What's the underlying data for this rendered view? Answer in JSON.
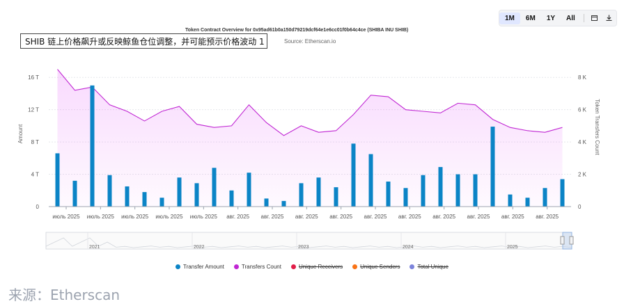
{
  "toolbar": {
    "ranges": [
      "1M",
      "6M",
      "1Y",
      "All"
    ],
    "active_range": "1M",
    "icons": [
      "calendar-icon",
      "download-icon"
    ]
  },
  "caption": "SHIB 链上价格飙升或反映鲸鱼仓位调整，并可能预示价格波动 1",
  "source_note": "来源：Etherscan",
  "chart_data": {
    "type": "bar",
    "title": "Token Contract Overview for 0x95ad61b0a150d79219dcf64e1e6cc01f0b64c4ce (SHIBA INU SHIB)",
    "subtitle": "Source: Etherscan.io",
    "y_left_label": "Amount",
    "y_right_label": "Token Transfers Count",
    "y_left_ticks": [
      "0",
      "4 T",
      "8 T",
      "12 T",
      "16 T"
    ],
    "y_right_ticks": [
      "0",
      "2 K",
      "4 K",
      "6 K",
      "8 K"
    ],
    "y_left_lim": [
      0,
      18
    ],
    "y_right_lim": [
      0,
      9000
    ],
    "x_tick_labels": [
      "июль 2025",
      "июль 2025",
      "июль 2025",
      "июль 2025",
      "июль 2025",
      "авг. 2025",
      "авг. 2025",
      "авг. 2025",
      "авг. 2025",
      "авг. 2025",
      "авг. 2025",
      "авг. 2025",
      "авг. 2025",
      "авг. 2025",
      "авг. 2025"
    ],
    "series": [
      {
        "name": "Transfer Amount",
        "type": "bar",
        "color": "#0b84c6",
        "values": [
          6.6,
          3.2,
          15.0,
          3.9,
          2.5,
          1.8,
          1.1,
          3.6,
          2.9,
          4.8,
          2.0,
          4.2,
          1.0,
          0.7,
          2.9,
          3.6,
          2.4,
          7.8,
          6.5,
          3.1,
          2.3,
          3.9,
          4.9,
          4.0,
          4.0,
          9.9,
          1.5,
          1.1,
          2.3,
          3.4
        ]
      },
      {
        "name": "Transfers Count",
        "type": "area",
        "color": "#c026d3",
        "values": [
          8500,
          7200,
          7400,
          6300,
          5900,
          5300,
          5900,
          6200,
          5100,
          4900,
          5000,
          6300,
          5200,
          4400,
          5000,
          4600,
          4700,
          5700,
          6900,
          6800,
          6000,
          5900,
          5800,
          6400,
          6300,
          5400,
          4900,
          4700,
          4600,
          4900
        ]
      }
    ],
    "navigator_years": [
      "2021",
      "2022",
      "2023",
      "2024",
      "2025"
    ],
    "legend": [
      {
        "name": "Transfer Amount",
        "color": "#0b84c6",
        "enabled": true
      },
      {
        "name": "Transfers Count",
        "color": "#c026d3",
        "enabled": true
      },
      {
        "name": "Unique Receivers",
        "color": "#e11d48",
        "enabled": false
      },
      {
        "name": "Unique Senders",
        "color": "#f97316",
        "enabled": false
      },
      {
        "name": "Total Unique",
        "color": "#7c83db",
        "enabled": false
      }
    ]
  }
}
